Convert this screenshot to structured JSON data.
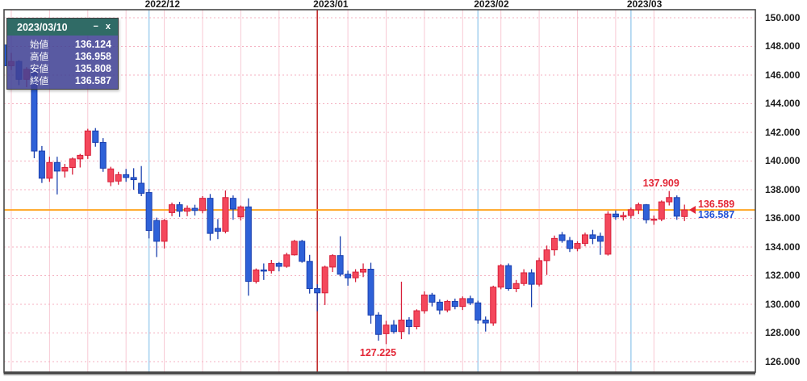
{
  "tooltip": {
    "title": "2023/03/10",
    "minimize_label": "−",
    "close_label": "x",
    "rows": [
      {
        "label": "始値",
        "value": "136.124"
      },
      {
        "label": "高値",
        "value": "136.958"
      },
      {
        "label": "安値",
        "value": "135.808"
      },
      {
        "label": "終値",
        "value": "136.587"
      }
    ]
  },
  "chart_data": {
    "type": "candlestick",
    "x_axis": {
      "labels": [
        {
          "text": "2022/12",
          "index": 19,
          "line": "month"
        },
        {
          "text": "2023/01",
          "index": 41,
          "line": "year"
        },
        {
          "text": "2023/02",
          "index": 62,
          "line": "month"
        },
        {
          "text": "2023/03",
          "index": 82,
          "line": "month"
        }
      ]
    },
    "y_axis": {
      "min": 126,
      "max": 150,
      "step": 2,
      "tick_labels": [
        "150.000",
        "148.000",
        "146.000",
        "144.000",
        "142.000",
        "140.000",
        "138.000",
        "136.000",
        "134.000",
        "132.000",
        "130.000",
        "128.000",
        "126.000"
      ]
    },
    "reference_line": {
      "price": 136.589,
      "color": "#FFA520"
    },
    "annotations": {
      "high": {
        "text": "137.909",
        "candle_index": 87,
        "position": "above"
      },
      "low": {
        "text": "127.225",
        "candle_index": 50,
        "position": "below"
      },
      "current": {
        "top_label": "136.589",
        "bottom_label": "136.587",
        "price": 136.587
      }
    },
    "colors": {
      "up_fill": "#F4485C",
      "up_stroke": "#D8203A",
      "down_fill": "#2E61D8",
      "down_stroke": "#1A3FAE",
      "grid_h": "#F4B0C0",
      "grid_week": "#F8C9D4",
      "grid_month": "#A8D2F0",
      "grid_year": "#C22B2B",
      "border": "#474747",
      "annotation_red": "#E32636",
      "annotation_blue": "#2450D4",
      "reference": "#FFA520"
    },
    "candles": [
      [
        "2022-11-04",
        148.1,
        148.3,
        146.3,
        146.65
      ],
      [
        "2022-11-07",
        146.65,
        147.55,
        146.35,
        146.95
      ],
      [
        "2022-11-08",
        146.95,
        147.05,
        145.3,
        145.7
      ],
      [
        "2022-11-09",
        145.7,
        146.55,
        145.15,
        146.4
      ],
      [
        "2022-11-10",
        146.4,
        146.6,
        140.2,
        140.7
      ],
      [
        "2022-11-11",
        140.7,
        141.05,
        138.47,
        138.8
      ],
      [
        "2022-11-14",
        138.8,
        140.3,
        138.55,
        139.9
      ],
      [
        "2022-11-15",
        139.9,
        140.3,
        137.67,
        139.3
      ],
      [
        "2022-11-16",
        139.3,
        139.8,
        138.85,
        139.55
      ],
      [
        "2022-11-17",
        139.55,
        140.25,
        139.05,
        140.15
      ],
      [
        "2022-11-18",
        140.15,
        140.5,
        139.55,
        140.4
      ],
      [
        "2022-11-21",
        140.4,
        142.25,
        140.15,
        142.1
      ],
      [
        "2022-11-22",
        142.1,
        142.3,
        141.0,
        141.3
      ],
      [
        "2022-11-23",
        141.3,
        141.6,
        139.25,
        139.5
      ],
      [
        "2022-11-24",
        138.55,
        139.6,
        138.25,
        139.45
      ],
      [
        "2022-11-25",
        138.6,
        139.25,
        138.35,
        139.05
      ],
      [
        "2022-11-28",
        139.05,
        139.45,
        138.55,
        138.85
      ],
      [
        "2022-11-29",
        138.85,
        139.5,
        138.0,
        138.7
      ],
      [
        "2022-11-30",
        138.45,
        139.65,
        137.55,
        137.75
      ],
      [
        "2022-12-01",
        137.8,
        138.05,
        134.6,
        135.15
      ],
      [
        "2022-12-02",
        135.85,
        136.05,
        133.3,
        134.4
      ],
      [
        "2022-12-05",
        134.4,
        135.95,
        133.9,
        135.85
      ],
      [
        "2022-12-06",
        136.4,
        137.1,
        136.15,
        136.95
      ],
      [
        "2022-12-07",
        136.95,
        137.15,
        136.1,
        136.5
      ],
      [
        "2022-12-08",
        136.5,
        136.9,
        136.15,
        136.7
      ],
      [
        "2022-12-09",
        136.7,
        136.95,
        136.2,
        136.55
      ],
      [
        "2022-12-12",
        136.55,
        137.55,
        136.35,
        137.4
      ],
      [
        "2022-12-13",
        137.4,
        137.7,
        134.45,
        134.95
      ],
      [
        "2022-12-14",
        135.3,
        135.95,
        134.55,
        135.1
      ],
      [
        "2022-12-15",
        135.1,
        137.95,
        134.95,
        137.45
      ],
      [
        "2022-12-16",
        137.4,
        137.6,
        135.9,
        136.65
      ],
      [
        "2022-12-19",
        136.1,
        136.9,
        135.85,
        136.8
      ],
      [
        "2022-12-20",
        136.8,
        137.4,
        130.6,
        131.6
      ],
      [
        "2022-12-21",
        131.6,
        132.5,
        131.45,
        132.4
      ],
      [
        "2022-12-22",
        132.4,
        132.85,
        131.7,
        132.35
      ],
      [
        "2022-12-23",
        132.35,
        133.1,
        132.15,
        132.85
      ],
      [
        "2022-12-26",
        132.85,
        132.95,
        132.3,
        132.65
      ],
      [
        "2022-12-27",
        132.65,
        133.6,
        132.55,
        133.45
      ],
      [
        "2022-12-28",
        133.45,
        134.5,
        133.4,
        134.4
      ],
      [
        "2022-12-29",
        134.4,
        134.5,
        132.9,
        133.0
      ],
      [
        "2022-12-30",
        133.0,
        133.45,
        130.75,
        131.1
      ],
      [
        "2023-01-03",
        131.1,
        131.4,
        129.52,
        130.8
      ],
      [
        "2023-01-04",
        130.8,
        132.7,
        129.95,
        132.6
      ],
      [
        "2023-01-05",
        132.6,
        133.5,
        132.25,
        133.4
      ],
      [
        "2023-01-06",
        133.4,
        134.75,
        131.95,
        132.1
      ],
      [
        "2023-01-09",
        132.1,
        132.35,
        131.3,
        131.85
      ],
      [
        "2023-01-10",
        131.85,
        132.45,
        131.55,
        132.25
      ],
      [
        "2023-01-11",
        132.25,
        132.85,
        131.9,
        132.45
      ],
      [
        "2023-01-12",
        132.45,
        132.9,
        128.65,
        129.25
      ],
      [
        "2023-01-13",
        129.25,
        129.45,
        127.46,
        127.9
      ],
      [
        "2023-01-16",
        127.95,
        128.85,
        127.22,
        128.55
      ],
      [
        "2023-01-17",
        128.55,
        128.9,
        127.95,
        128.1
      ],
      [
        "2023-01-18",
        128.1,
        131.58,
        127.57,
        128.9
      ],
      [
        "2023-01-19",
        128.9,
        129.1,
        127.9,
        128.45
      ],
      [
        "2023-01-20",
        128.45,
        129.65,
        128.25,
        129.55
      ],
      [
        "2023-01-23",
        129.55,
        130.9,
        129.35,
        130.65
      ],
      [
        "2023-01-24",
        130.65,
        130.8,
        129.85,
        130.15
      ],
      [
        "2023-01-25",
        130.15,
        130.35,
        129.3,
        129.6
      ],
      [
        "2023-01-26",
        129.6,
        130.3,
        129.45,
        130.2
      ],
      [
        "2023-01-27",
        130.2,
        130.4,
        129.65,
        129.85
      ],
      [
        "2023-01-30",
        129.85,
        130.55,
        129.6,
        130.4
      ],
      [
        "2023-01-31",
        130.4,
        130.6,
        129.95,
        130.1
      ],
      [
        "2023-02-01",
        130.1,
        130.25,
        128.65,
        128.9
      ],
      [
        "2023-02-02",
        128.9,
        129.15,
        128.1,
        128.7
      ],
      [
        "2023-02-03",
        128.7,
        131.3,
        128.5,
        131.2
      ],
      [
        "2023-02-06",
        131.2,
        132.8,
        131.05,
        132.7
      ],
      [
        "2023-02-07",
        132.7,
        132.85,
        130.95,
        131.1
      ],
      [
        "2023-02-08",
        131.1,
        131.7,
        130.85,
        131.45
      ],
      [
        "2023-02-09",
        131.45,
        132.45,
        131.3,
        132.2
      ],
      [
        "2023-02-10",
        132.2,
        132.45,
        129.8,
        131.4
      ],
      [
        "2023-02-13",
        131.4,
        133.25,
        131.25,
        133.05
      ],
      [
        "2023-02-14",
        133.05,
        134.1,
        132.05,
        133.8
      ],
      [
        "2023-02-15",
        133.8,
        134.8,
        133.4,
        134.6
      ],
      [
        "2023-02-16",
        134.85,
        135.05,
        134.3,
        134.45
      ],
      [
        "2023-02-17",
        134.45,
        134.7,
        133.65,
        133.9
      ],
      [
        "2023-02-20",
        133.9,
        134.4,
        133.7,
        134.25
      ],
      [
        "2023-02-21",
        134.25,
        135.0,
        134.05,
        134.85
      ],
      [
        "2023-02-22",
        134.85,
        135.2,
        134.2,
        134.6
      ],
      [
        "2023-02-23",
        134.75,
        135.0,
        133.45,
        134.4
      ],
      [
        "2023-02-24",
        133.5,
        136.5,
        133.4,
        136.3
      ],
      [
        "2023-02-27",
        136.3,
        136.55,
        135.9,
        136.1
      ],
      [
        "2023-02-28",
        136.1,
        136.45,
        135.85,
        136.2
      ],
      [
        "2023-03-01",
        136.2,
        136.75,
        136.0,
        136.6
      ],
      [
        "2023-03-02",
        136.6,
        137.1,
        136.3,
        136.95
      ],
      [
        "2023-03-03",
        136.95,
        137.0,
        135.65,
        135.9
      ],
      [
        "2023-03-06",
        135.9,
        136.2,
        135.55,
        135.95
      ],
      [
        "2023-03-07",
        135.95,
        137.25,
        135.8,
        137.15
      ],
      [
        "2023-03-08",
        137.15,
        137.909,
        136.9,
        137.45
      ],
      [
        "2023-03-09",
        137.45,
        137.6,
        135.9,
        136.15
      ],
      [
        "2023-03-10",
        136.124,
        136.958,
        135.808,
        136.587
      ]
    ]
  }
}
